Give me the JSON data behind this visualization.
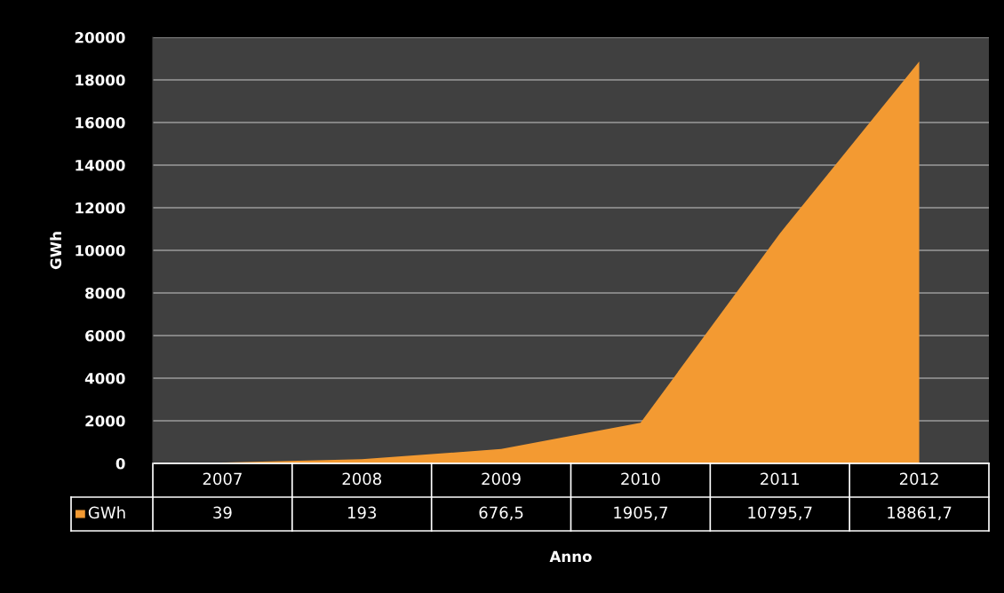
{
  "chart_data": {
    "type": "area",
    "xlabel": "Anno",
    "ylabel": "GWh",
    "categories": [
      "2007",
      "2008",
      "2009",
      "2010",
      "2011",
      "2012"
    ],
    "series": [
      {
        "name": "GWh",
        "color": "#f39a32",
        "values": [
          39,
          193,
          676.5,
          1905.7,
          10795.7,
          18861.7
        ],
        "value_labels": [
          "39",
          "193",
          "676,5",
          "1905,7",
          "10795,7",
          "18861,7"
        ]
      }
    ],
    "ylim": [
      0,
      20000
    ],
    "yticks": [
      0,
      2000,
      4000,
      6000,
      8000,
      10000,
      12000,
      14000,
      16000,
      18000,
      20000
    ],
    "grid": "y"
  }
}
